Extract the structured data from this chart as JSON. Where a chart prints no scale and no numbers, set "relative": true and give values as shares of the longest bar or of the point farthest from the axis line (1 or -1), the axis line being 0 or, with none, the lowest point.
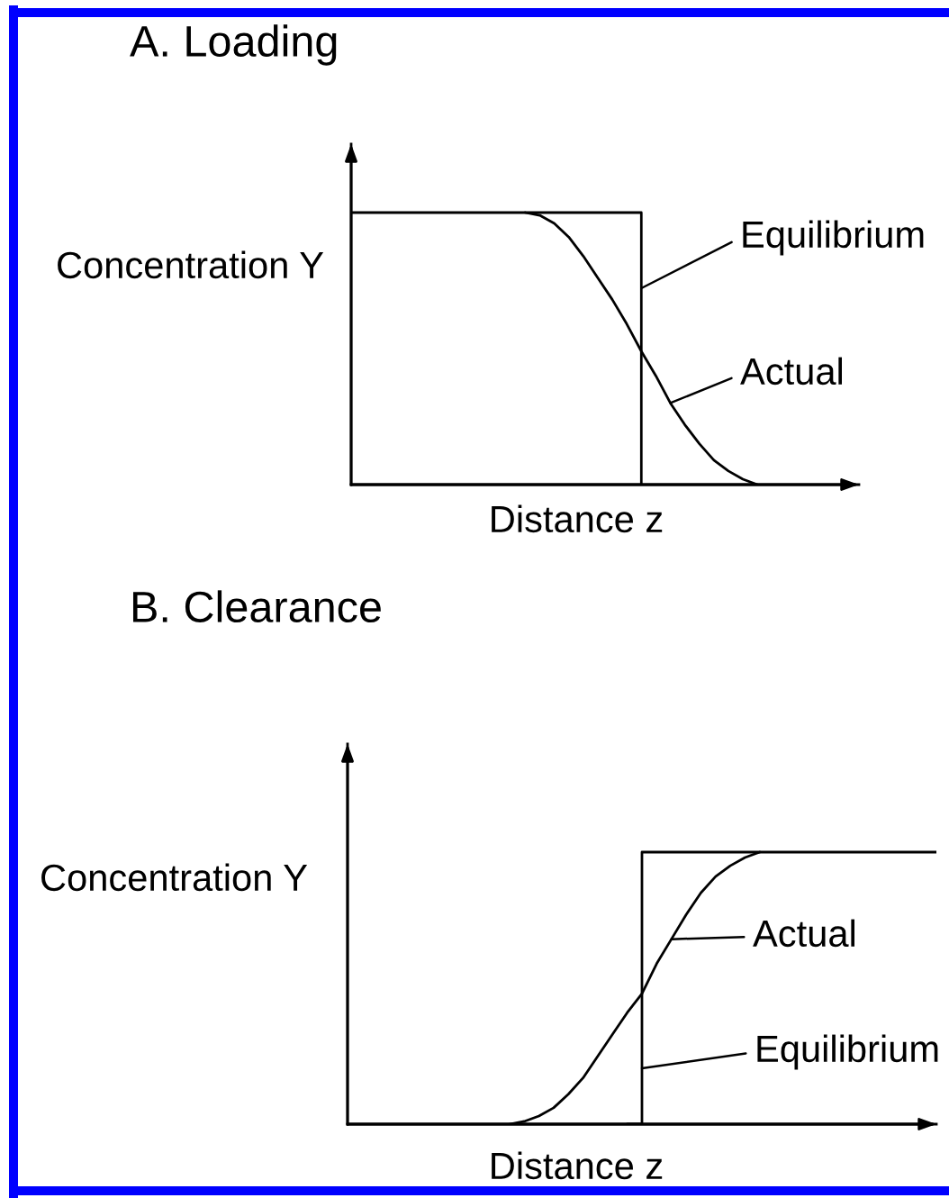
{
  "chart_data": [
    {
      "type": "line",
      "title": "A. Loading",
      "xlabel": "Distance z",
      "ylabel": "Concentration Y",
      "relative": true,
      "categories": [
        null,
        null,
        null,
        null,
        null,
        null,
        null,
        null,
        null,
        null,
        null,
        null,
        null,
        null,
        null,
        null,
        null,
        null,
        null,
        null,
        null,
        null,
        null,
        null,
        null,
        null,
        null,
        null,
        null,
        null,
        null,
        null,
        null,
        null,
        null,
        null
      ],
      "series": [
        {
          "name": "Equilibrium",
          "type": "step",
          "color": "#000000",
          "values": [
            1,
            1,
            1,
            1,
            1,
            1,
            1,
            1,
            1,
            1,
            1,
            1,
            1,
            1,
            1,
            1,
            1,
            1,
            1,
            1,
            0,
            null,
            null,
            null,
            null,
            null,
            null,
            null,
            null,
            null,
            null,
            null,
            null,
            null,
            null,
            null
          ]
        },
        {
          "name": "Actual",
          "type": "line",
          "color": "#000000",
          "values": [
            null,
            null,
            null,
            null,
            null,
            null,
            null,
            null,
            null,
            null,
            null,
            null,
            1,
            0.99,
            0.96,
            0.91,
            0.84,
            0.76,
            0.68,
            0.59,
            0.49,
            0.4,
            0.3,
            0.22,
            0.15,
            0.09,
            0.05,
            0.02,
            0,
            null,
            null,
            null,
            null,
            null,
            null,
            null
          ]
        }
      ]
    },
    {
      "type": "line",
      "title": "B. Clearance",
      "xlabel": "Distance z",
      "ylabel": "Concentration Y",
      "relative": true,
      "legend": "right",
      "categories": [
        null,
        null,
        null,
        null,
        null,
        null,
        null,
        null,
        null,
        null,
        null,
        null,
        null,
        null,
        null,
        null,
        null,
        null,
        null,
        null,
        null,
        null,
        null,
        null,
        null,
        null,
        null,
        null,
        null,
        null,
        null,
        null,
        null,
        null,
        null,
        null,
        null,
        null,
        null,
        null,
        null
      ],
      "series": [
        {
          "name": "Equilibrium",
          "type": "step",
          "color": "#000000",
          "values": [
            null,
            null,
            null,
            null,
            null,
            null,
            null,
            null,
            null,
            null,
            null,
            null,
            null,
            null,
            null,
            null,
            null,
            null,
            null,
            0,
            1,
            1,
            1,
            1,
            1,
            1,
            1,
            1,
            1,
            1,
            1,
            1,
            1,
            1,
            1,
            1,
            1,
            1,
            1,
            1,
            1
          ]
        },
        {
          "name": "Actual",
          "type": "line",
          "color": "#000000",
          "values": [
            null,
            null,
            null,
            null,
            null,
            null,
            null,
            null,
            null,
            null,
            null,
            0,
            0.01,
            0.03,
            0.06,
            0.11,
            0.17,
            0.25,
            0.33,
            0.41,
            0.48,
            0.59,
            0.68,
            0.77,
            0.85,
            0.91,
            0.95,
            0.98,
            1,
            null,
            null,
            null,
            null,
            null,
            null,
            null,
            null,
            null,
            null,
            null,
            null
          ]
        }
      ]
    }
  ]
}
